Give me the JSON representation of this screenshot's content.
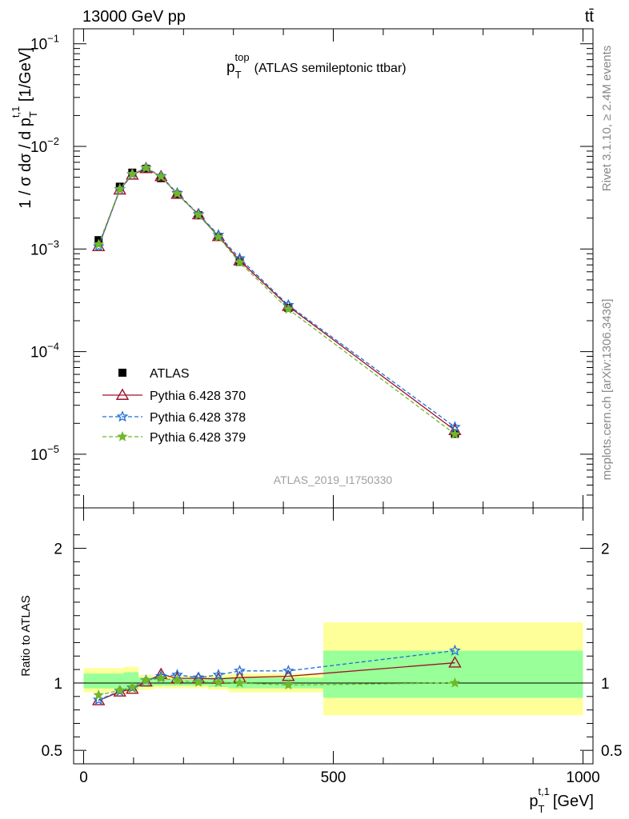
{
  "header": {
    "left": "13000 GeV pp",
    "right": "tt̄"
  },
  "side_labels": {
    "rivet": "Rivet 3.1.10, ≥ 2.4M events",
    "mcplots": "mcplots.cern.ch [arXiv:1306.3436]"
  },
  "chart_data": [
    {
      "type": "scatter",
      "title": "p_T^top (ATLAS semileptonic ttbar)",
      "title_main": "p",
      "title_sub": "T",
      "title_sup": "top",
      "title_rest": "(ATLAS semileptonic ttbar)",
      "watermark": "ATLAS_2019_I1750330",
      "ylabel": "1 / σ dσ / d p_T^{t,1} [1/GeV]",
      "y_scale": "log",
      "ylim": [
        3e-06,
        0.14
      ],
      "xlim": [
        -20,
        1020
      ],
      "y_ticks": [
        {
          "value": 1e-05,
          "label": "10",
          "exp": "−5"
        },
        {
          "value": 0.0001,
          "label": "10",
          "exp": "−4"
        },
        {
          "value": 0.001,
          "label": "10",
          "exp": "−3"
        },
        {
          "value": 0.01,
          "label": "10",
          "exp": "−2"
        },
        {
          "value": 0.1,
          "label": "10",
          "exp": "−1"
        }
      ],
      "legend_position": "center-left",
      "x": [
        30,
        72.5,
        97.5,
        125,
        155,
        187.5,
        230,
        270,
        312.5,
        410,
        743.5
      ],
      "series": [
        {
          "name": "ATLAS",
          "color": "#000000",
          "marker": "square",
          "line": "none",
          "values": [
            0.00122,
            0.00405,
            0.00555,
            0.00605,
            0.0049,
            0.00338,
            0.00213,
            0.00131,
            0.00075,
            0.000267,
            1.58e-05
          ]
        },
        {
          "name": "Pythia 6.428 370",
          "color": "#a0102a",
          "marker": "triangle-open",
          "line": "solid",
          "values": [
            0.00106,
            0.00378,
            0.00528,
            0.0061,
            0.0051,
            0.00343,
            0.00217,
            0.00133,
            0.00077,
            0.000277,
            1.71e-05
          ]
        },
        {
          "name": "Pythia 6.428 378",
          "color": "#1f6fd6",
          "marker": "star-open",
          "line": "dashed",
          "values": [
            0.00106,
            0.00382,
            0.00535,
            0.00618,
            0.00513,
            0.0035,
            0.00218,
            0.00137,
            0.00081,
            0.000284,
            1.84e-05
          ]
        },
        {
          "name": "Pythia 6.428 379",
          "color": "#6fb82a",
          "marker": "star",
          "line": "dashed",
          "values": [
            0.00111,
            0.00383,
            0.00538,
            0.00617,
            0.00508,
            0.00345,
            0.00214,
            0.00131,
            0.00074,
            0.000259,
            1.57e-05
          ]
        }
      ]
    },
    {
      "type": "scatter",
      "ylabel": "Ratio to ATLAS",
      "xlabel": "p_T^{t,1} [GeV]",
      "xlabel_main": "p",
      "xlabel_sub": "T",
      "xlabel_sup": "t,1",
      "xlabel_unit": "[GeV]",
      "xlim": [
        -20,
        1020
      ],
      "ylim": [
        0.4,
        2.3
      ],
      "x_ticks": [
        0,
        500,
        1000
      ],
      "y_ticks": [
        0.5,
        1,
        2
      ],
      "reference_line": 1,
      "x": [
        30,
        72.5,
        97.5,
        125,
        155,
        187.5,
        230,
        270,
        312.5,
        410,
        743.5
      ],
      "uncertainty_bins": [
        {
          "x": [
            0,
            80
          ],
          "stat_syst": [
            0.93,
            1.11
          ],
          "stat": [
            0.96,
            1.07
          ]
        },
        {
          "x": [
            80,
            110
          ],
          "stat_syst": [
            0.92,
            1.12
          ],
          "stat": [
            0.95,
            1.08
          ]
        },
        {
          "x": [
            110,
            140
          ],
          "stat_syst": [
            0.95,
            1.06
          ],
          "stat": [
            0.97,
            1.04
          ]
        },
        {
          "x": [
            140,
            170
          ],
          "stat_syst": [
            0.96,
            1.05
          ],
          "stat": [
            0.98,
            1.03
          ]
        },
        {
          "x": [
            170,
            205
          ],
          "stat_syst": [
            0.96,
            1.05
          ],
          "stat": [
            0.98,
            1.03
          ]
        },
        {
          "x": [
            205,
            250
          ],
          "stat_syst": [
            0.96,
            1.05
          ],
          "stat": [
            0.98,
            1.03
          ]
        },
        {
          "x": [
            250,
            290
          ],
          "stat_syst": [
            0.95,
            1.06
          ],
          "stat": [
            0.97,
            1.04
          ]
        },
        {
          "x": [
            290,
            480
          ],
          "stat_syst": [
            0.93,
            1.07
          ],
          "stat": [
            0.96,
            1.04
          ]
        },
        {
          "x": [
            480,
            1000
          ],
          "stat_syst": [
            0.76,
            1.45
          ],
          "stat": [
            0.89,
            1.24
          ]
        }
      ],
      "series": [
        {
          "name": "Pythia 6.428 370",
          "color": "#a0102a",
          "values": [
            0.87,
            0.935,
            0.955,
            1.01,
            1.065,
            1.035,
            1.035,
            1.03,
            1.04,
            1.05,
            1.15
          ]
        },
        {
          "name": "Pythia 6.428 378",
          "color": "#1f6fd6",
          "values": [
            0.875,
            0.94,
            0.965,
            1.02,
            1.05,
            1.06,
            1.04,
            1.06,
            1.09,
            1.09,
            1.24
          ]
        },
        {
          "name": "Pythia 6.428 379",
          "color": "#6fb82a",
          "values": [
            0.91,
            0.945,
            0.97,
            1.02,
            1.035,
            1.02,
            1.005,
            1.005,
            1.0,
            0.985,
            1.0
          ]
        }
      ]
    }
  ]
}
